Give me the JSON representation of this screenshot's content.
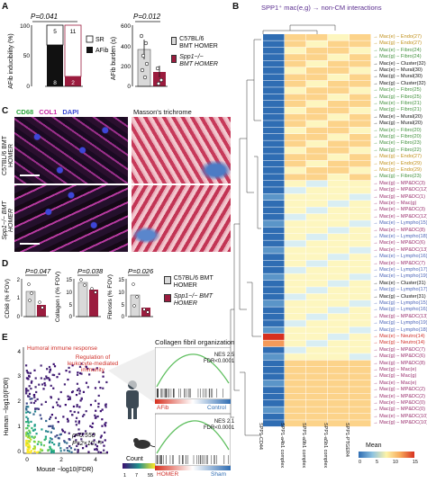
{
  "panels": {
    "A": "A",
    "B": "B",
    "C": "C",
    "D": "D",
    "E": "E"
  },
  "panelA": {
    "afib_chart": {
      "pvalue": "P=0.041",
      "ylabel": "AFib inducibility (%)",
      "ticks": [
        "100",
        "50",
        "0"
      ],
      "bar_counts": {
        "wt_sr": "5",
        "wt_afib": "8",
        "ko_sr": "11",
        "ko_afib": "2"
      },
      "legend": [
        "SR",
        "AFib"
      ]
    },
    "burden_chart": {
      "pvalue": "P=0.012",
      "ylabel": "AFib burden (s)",
      "ticks": [
        "600",
        "400",
        "200",
        "0"
      ],
      "legend": [
        "C57BL/6 BMT HOMER",
        "Spp1−/− BMT HOMER"
      ]
    }
  },
  "panelB": {
    "title": "SPP1⁺ mac(e,g) → non-CM interactions",
    "columns": [
      "SPP1-CD44",
      "SPP1-a4b1 complex",
      "SPP1-a9b1 complex",
      "SPP1-a5b1 complex",
      "SPP1-PTGER4"
    ],
    "legend_title": "Mean",
    "legend_ticks": [
      "0",
      "5",
      "10",
      "15"
    ],
    "rows": [
      {
        "t": "→ Mac(e) − Endo(27)",
        "c": "#c0901a"
      },
      {
        "t": "→ Mac(g) − Endo(27)",
        "c": "#c0901a"
      },
      {
        "t": "→ Mac(e) − Fibro(24)",
        "c": "#3f8f3a"
      },
      {
        "t": "→ Mac(g) − Fibro(24)",
        "c": "#3f8f3a"
      },
      {
        "t": "→ Mac(e) − Cluster(32)",
        "c": "#111111"
      },
      {
        "t": "→ Mac(e) − Mural(30)",
        "c": "#111111"
      },
      {
        "t": "→ Mac(g) − Mural(30)",
        "c": "#111111"
      },
      {
        "t": "→ Mac(g) − Cluster(32)",
        "c": "#111111"
      },
      {
        "t": "→ Mac(e) − Fibro(25)",
        "c": "#3f8f3a"
      },
      {
        "t": "→ Mac(g) − Fibro(25)",
        "c": "#3f8f3a"
      },
      {
        "t": "→ Mac(e) − Fibro(21)",
        "c": "#3f8f3a"
      },
      {
        "t": "→ Mac(g) − Fibro(21)",
        "c": "#3f8f3a"
      },
      {
        "t": "→ Mac(e) − Mural(20)",
        "c": "#111111"
      },
      {
        "t": "→ Mac(g) − Mural(20)",
        "c": "#111111"
      },
      {
        "t": "→ Mac(e) − Fibro(20)",
        "c": "#3f8f3a"
      },
      {
        "t": "→ Mac(g) − Fibro(20)",
        "c": "#3f8f3a"
      },
      {
        "t": "→ Mac(e) − Fibro(23)",
        "c": "#3f8f3a"
      },
      {
        "t": "→ Mac(g) − Fibro(22)",
        "c": "#3f8f3a"
      },
      {
        "t": "→ Mac(g) − Endo(27)",
        "c": "#c0901a"
      },
      {
        "t": "→ Mac(e) − Endo(29)",
        "c": "#c0901a"
      },
      {
        "t": "→ Mac(g) − Endo(29)",
        "c": "#c0901a"
      },
      {
        "t": "→ Mac(g) − Fibro(23)",
        "c": "#3f8f3a"
      },
      {
        "t": "→ Mac(g) − MP&DC(3)",
        "c": "#9a2f6e"
      },
      {
        "t": "→ Mac(g) − MP&DC(12)",
        "c": "#9a2f6e"
      },
      {
        "t": "→ Mac(g) − MP&DC(1)",
        "c": "#9a2f6e"
      },
      {
        "t": "→ Mac(e) − Mac(g)",
        "c": "#9a2f6e"
      },
      {
        "t": "→ Mac(e) − MP&DC(3)",
        "c": "#9a2f6e"
      },
      {
        "t": "→ Mac(e) − MP&DC(12)",
        "c": "#9a2f6e"
      },
      {
        "t": "→ Mac(e) − Lympho(15)",
        "c": "#4a63b8"
      },
      {
        "t": "→ Mac(e) − MP&DC(8)",
        "c": "#9a2f6e"
      },
      {
        "t": "→ Mac(e) − Lympho(18)",
        "c": "#4a63b8"
      },
      {
        "t": "→ Mac(e) − MP&DC(6)",
        "c": "#9a2f6e"
      },
      {
        "t": "→ Mac(e) − MP&DC(13)",
        "c": "#9a2f6e"
      },
      {
        "t": "→ Mac(e) − Lympho(16)",
        "c": "#4a63b8"
      },
      {
        "t": "→ Mac(e) − MP&DC(7)",
        "c": "#9a2f6e"
      },
      {
        "t": "→ Mac(e) − Lympho(17)",
        "c": "#4a63b8"
      },
      {
        "t": "→ Mac(e) − Lympho(19)",
        "c": "#4a63b8"
      },
      {
        "t": "→ Mac(e) − Cluster(31)",
        "c": "#111111"
      },
      {
        "t": "→ Mac(g) − Lympho(17)",
        "c": "#4a63b8"
      },
      {
        "t": "→ Mac(g) − Cluster(31)",
        "c": "#111111"
      },
      {
        "t": "→ Mac(g) − Lympho(15)",
        "c": "#4a63b8"
      },
      {
        "t": "→ Mac(g) − Lympho(16)",
        "c": "#4a63b8"
      },
      {
        "t": "→ Mac(g) − MP&DC(13)",
        "c": "#9a2f6e"
      },
      {
        "t": "→ Mac(g) − Lympho(19)",
        "c": "#4a63b8"
      },
      {
        "t": "→ Mac(g) − Lympho(18)",
        "c": "#4a63b8"
      },
      {
        "t": "→ Mac(e) − Neutro(14)",
        "c": "#d0302a"
      },
      {
        "t": "→ Mac(g) − Neutro(14)",
        "c": "#d0302a"
      },
      {
        "t": "→ Mac(g) − MP&DC(7)",
        "c": "#9a2f6e"
      },
      {
        "t": "→ Mac(g) − MP&DC(6)",
        "c": "#9a2f6e"
      },
      {
        "t": "→ Mac(g) − MP&DC(8)",
        "c": "#9a2f6e"
      },
      {
        "t": "→ Mac(g) − Mac(e)",
        "c": "#9a2f6e"
      },
      {
        "t": "→ Mac(g) − Mac(g)",
        "c": "#9a2f6e"
      },
      {
        "t": "→ Mac(e) − Mac(e)",
        "c": "#9a2f6e"
      },
      {
        "t": "→ Mac(g) − MP&DC(2)",
        "c": "#9a2f6e"
      },
      {
        "t": "→ Mac(e) − MP&DC(2)",
        "c": "#9a2f6e"
      },
      {
        "t": "→ Mac(e) − MP&DC(0)",
        "c": "#9a2f6e"
      },
      {
        "t": "→ Mac(g) − MP&DC(0)",
        "c": "#9a2f6e"
      },
      {
        "t": "→ Mac(e) − MP&DC(10)",
        "c": "#9a2f6e"
      },
      {
        "t": "→ Mac(g) − MP&DC(10)",
        "c": "#9a2f6e"
      }
    ]
  },
  "panelC": {
    "stain_labels": [
      "CD68",
      "COL1",
      "DAPI"
    ],
    "trichrome_label": "Masson's trichrome",
    "row_labels": [
      "C57BL/6 BMT HOMER",
      "Spp1−/− BMT HOMER"
    ]
  },
  "panelD": {
    "charts": [
      {
        "pvalue": "P=0.047",
        "ylabel": "CD68 (% FOV)",
        "ticks": [
          "2",
          "1",
          "0"
        ]
      },
      {
        "pvalue": "P=0.038",
        "ylabel": "Collagen I (% FOV)",
        "ticks": [
          "15",
          "10",
          "5",
          "0"
        ]
      },
      {
        "pvalue": "P=0.026",
        "ylabel": "Fibrosis (% FOV)",
        "ticks": [
          "15",
          "10",
          "5",
          "0"
        ]
      }
    ],
    "legend": [
      "C57BL/6 BMT HOMER",
      "Spp1−/− BMT HOMER"
    ]
  },
  "panelE": {
    "ylabel": "Human −log10(FDR)",
    "xlabel": "Mouse −log10(FDR)",
    "yticks": [
      "4",
      "3",
      "2",
      "1",
      "0"
    ],
    "xticks": [
      "0",
      "2",
      "4"
    ],
    "annotation1": "Humoral immune response",
    "annotation2": "Regulation of leukocyte-mediated immunity",
    "stat_rho": "ρ=0.550",
    "stat_p": "P=2×10⁻¹⁶",
    "count_label": "Count",
    "count_ticks": [
      "1",
      "7",
      "55"
    ],
    "gsea_title": "Collagen fibril organization",
    "gsea_top": {
      "nes": "NES 2.5",
      "fdr": "FDR<0.0001",
      "left": "AFib",
      "right": "Control"
    },
    "gsea_bottom": {
      "nes": "NES 2.1",
      "fdr": "FDR<0.0001",
      "left": "HOMER",
      "right": "Sham"
    }
  },
  "colors": {
    "wt_bar": "#d9d9d9",
    "ko_bar": "#9b1c3e",
    "afib_fill": "#111111",
    "heat_low": "#2f6db3",
    "heat_high": "#d7301f",
    "cd68": "#44cc55",
    "col1": "#d23bb4",
    "dapi": "#4a55e0"
  }
}
